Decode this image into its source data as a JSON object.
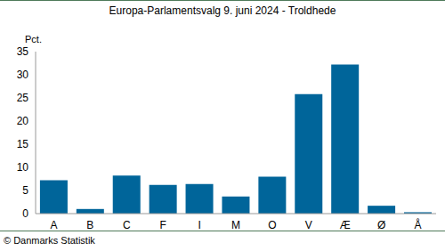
{
  "chart_data": {
    "type": "bar",
    "title": "Europa-Parlamentsvalg 9. juni 2024 - Troldhede",
    "y_label": "Pct.",
    "source": "© Danmarks Statistik",
    "categories": [
      "A",
      "B",
      "C",
      "F",
      "I",
      "M",
      "O",
      "V",
      "Æ",
      "Ø",
      "Å"
    ],
    "values": [
      7.2,
      1.0,
      8.2,
      6.2,
      6.4,
      3.7,
      8.0,
      25.8,
      32.2,
      1.7,
      0.3
    ],
    "color": "#00659a",
    "ylim": [
      0,
      35
    ],
    "yticks": [
      0,
      5,
      10,
      15,
      20,
      25,
      30,
      35
    ],
    "grid": false
  }
}
